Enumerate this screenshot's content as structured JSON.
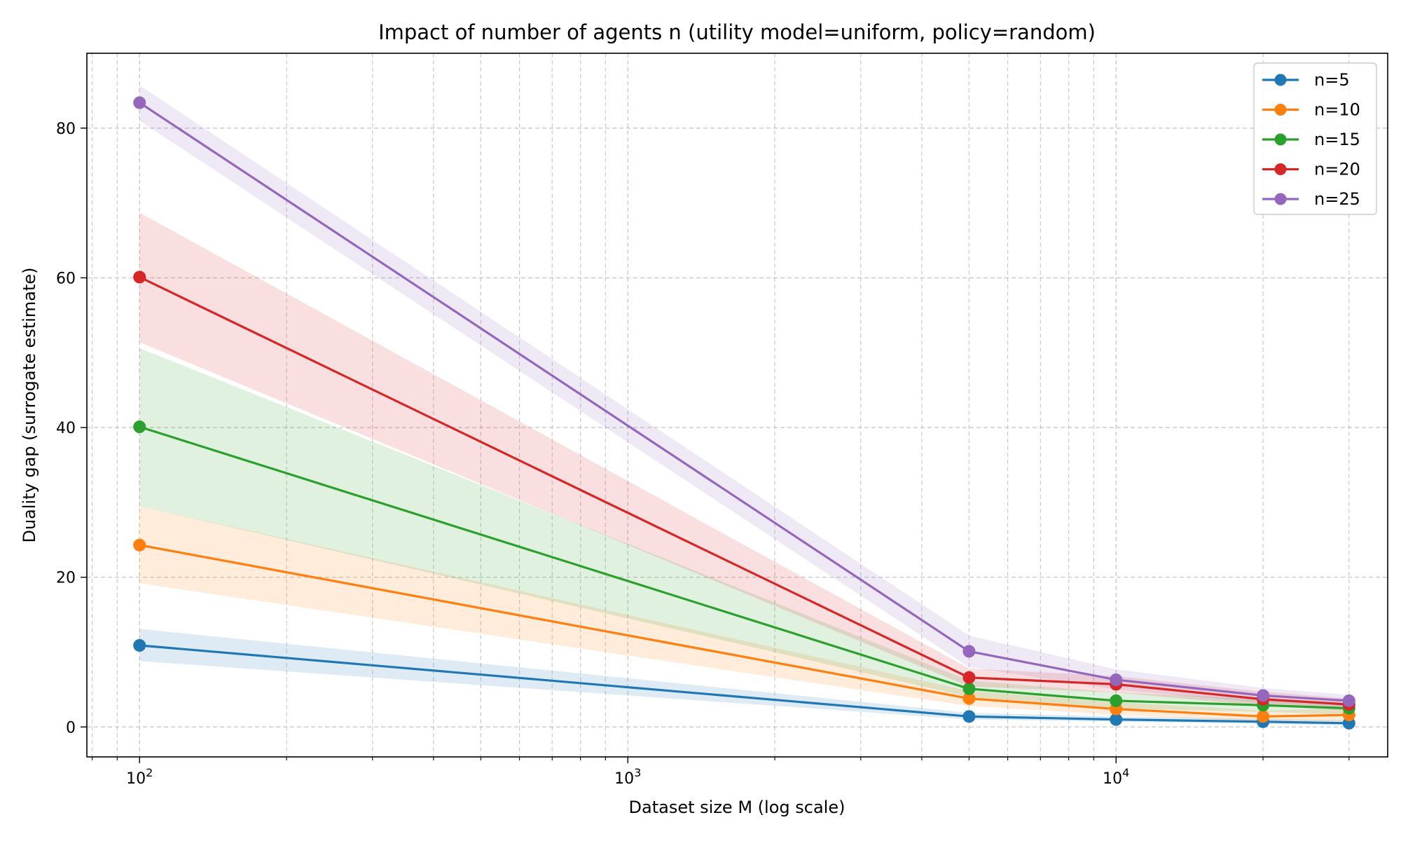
{
  "chart_data": {
    "type": "line",
    "title": "Impact of number of agents n (utility model=uniform, policy=random)",
    "xlabel": "Dataset size M (log scale)",
    "ylabel": "Duality gap (surrogate estimate)",
    "xscale": "log",
    "xlim": [
      78,
      36000
    ],
    "ylim": [
      -4,
      90
    ],
    "yticks": [
      0,
      20,
      40,
      60,
      80
    ],
    "xtick_labels": [
      {
        "base": "10",
        "exp": "2",
        "value": 100
      },
      {
        "base": "10",
        "exp": "3",
        "value": 1000
      },
      {
        "base": "10",
        "exp": "4",
        "value": 10000
      }
    ],
    "grid": true,
    "legend_position": "top-right",
    "x": [
      100,
      5000,
      10000,
      20000,
      30000
    ],
    "series": [
      {
        "name": "n=5",
        "color": "#1f77b4",
        "values": [
          10.9,
          1.4,
          1.0,
          0.7,
          0.5
        ],
        "lower": [
          8.8,
          1.0,
          0.7,
          0.4,
          0.2
        ],
        "upper": [
          13.1,
          1.9,
          1.4,
          1.1,
          0.9
        ]
      },
      {
        "name": "n=10",
        "color": "#ff7f0e",
        "values": [
          24.3,
          3.8,
          2.4,
          1.4,
          1.6
        ],
        "lower": [
          19.2,
          2.8,
          1.6,
          0.7,
          0.8
        ],
        "upper": [
          29.5,
          4.8,
          3.3,
          2.2,
          2.5
        ]
      },
      {
        "name": "n=15",
        "color": "#2ca02c",
        "values": [
          40.1,
          5.1,
          3.5,
          2.9,
          2.5
        ],
        "lower": [
          29.5,
          4.0,
          2.5,
          2.0,
          1.7
        ],
        "upper": [
          50.6,
          6.2,
          4.6,
          3.8,
          3.3
        ]
      },
      {
        "name": "n=20",
        "color": "#d62728",
        "values": [
          60.1,
          6.6,
          5.7,
          3.7,
          3.0
        ],
        "lower": [
          51.4,
          5.4,
          4.6,
          2.8,
          2.2
        ],
        "upper": [
          68.7,
          7.8,
          6.8,
          4.7,
          3.8
        ]
      },
      {
        "name": "n=25",
        "color": "#9467bd",
        "values": [
          83.4,
          10.1,
          6.3,
          4.2,
          3.5
        ],
        "lower": [
          81.0,
          8.0,
          5.0,
          3.2,
          2.7
        ],
        "upper": [
          85.7,
          12.2,
          7.7,
          5.2,
          4.3
        ]
      }
    ]
  }
}
